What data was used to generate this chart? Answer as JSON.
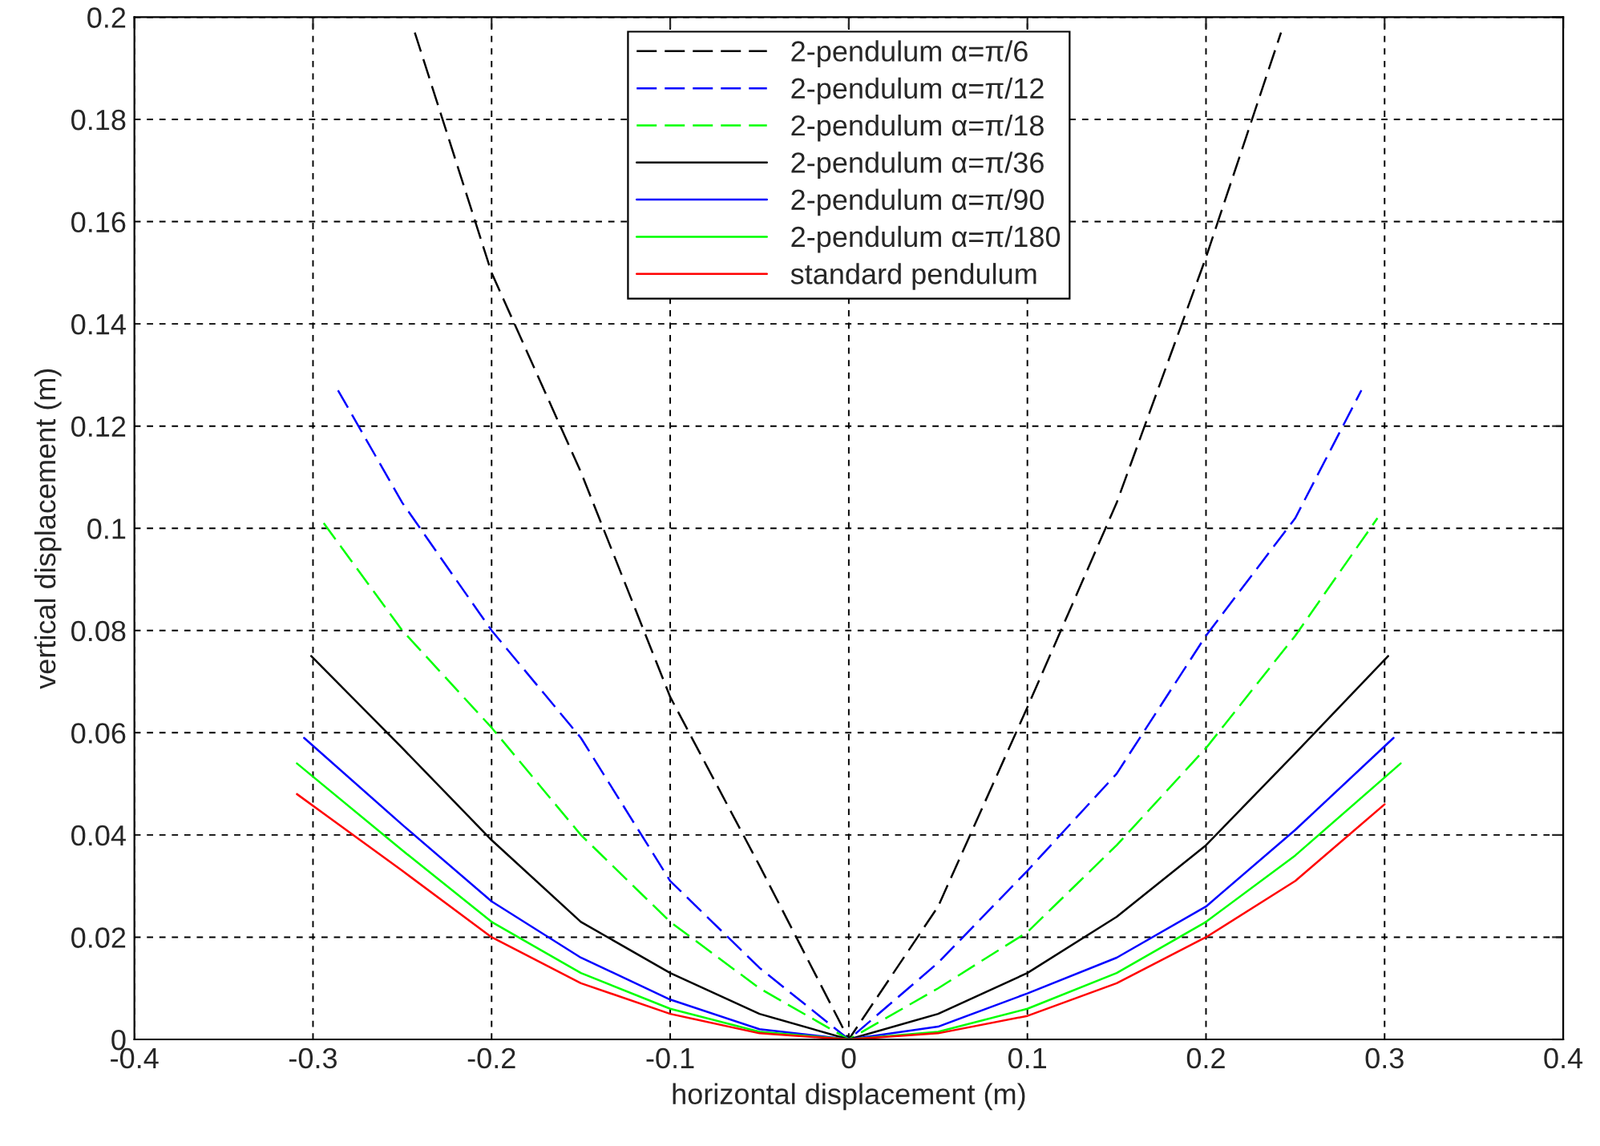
{
  "chart_data": {
    "type": "line",
    "xlabel": "horizontal displacement (m)",
    "ylabel": "vertical displacement (m)",
    "xlim": [
      -0.4,
      0.4
    ],
    "xticks": [
      -0.4,
      -0.3,
      -0.2,
      -0.1,
      0,
      0.1,
      0.2,
      0.3,
      0.4
    ],
    "ylim": [
      0,
      0.2
    ],
    "yticks": [
      0,
      0.02,
      0.04,
      0.06,
      0.08,
      0.1,
      0.12,
      0.14,
      0.16,
      0.18,
      0.2
    ],
    "grid": true,
    "legend": "top",
    "marker": "none",
    "series": [
      {
        "name": "2-pendulum α=π/6",
        "color": "#000000",
        "line_style": "dashed",
        "x": [
          -0.243,
          -0.2,
          -0.15,
          -0.1,
          -0.05,
          0,
          0.05,
          0.1,
          0.15,
          0.2,
          0.242
        ],
        "values": [
          0.197,
          0.15,
          0.111,
          0.067,
          0.034,
          0,
          0.026,
          0.065,
          0.105,
          0.153,
          0.197
        ]
      },
      {
        "name": "2-pendulum α=π/12",
        "color": "#0000ff",
        "line_style": "dashed",
        "x": [
          -0.286,
          -0.25,
          -0.2,
          -0.15,
          -0.1,
          -0.05,
          0,
          0.05,
          0.1,
          0.15,
          0.2,
          0.25,
          0.287
        ],
        "values": [
          0.127,
          0.105,
          0.08,
          0.059,
          0.031,
          0.014,
          0,
          0.015,
          0.033,
          0.052,
          0.079,
          0.102,
          0.127
        ]
      },
      {
        "name": "2-pendulum α=π/18",
        "color": "#00ff00",
        "line_style": "dashed",
        "x": [
          -0.294,
          -0.25,
          -0.2,
          -0.15,
          -0.1,
          -0.05,
          0,
          0.05,
          0.1,
          0.15,
          0.2,
          0.25,
          0.296
        ],
        "values": [
          0.101,
          0.08,
          0.061,
          0.04,
          0.023,
          0.01,
          0,
          0.01,
          0.021,
          0.038,
          0.057,
          0.079,
          0.102
        ]
      },
      {
        "name": "2-pendulum α=π/36",
        "color": "#000000",
        "line_style": "solid",
        "x": [
          -0.301,
          -0.25,
          -0.2,
          -0.15,
          -0.1,
          -0.05,
          0,
          0.05,
          0.1,
          0.15,
          0.2,
          0.25,
          0.302
        ],
        "values": [
          0.075,
          0.057,
          0.039,
          0.023,
          0.013,
          0.005,
          0,
          0.005,
          0.013,
          0.024,
          0.038,
          0.056,
          0.075
        ]
      },
      {
        "name": "2-pendulum α=π/90",
        "color": "#0000ff",
        "line_style": "solid",
        "x": [
          -0.305,
          -0.25,
          -0.2,
          -0.15,
          -0.1,
          -0.05,
          0,
          0.05,
          0.1,
          0.15,
          0.2,
          0.25,
          0.305
        ],
        "values": [
          0.059,
          0.042,
          0.027,
          0.016,
          0.0078,
          0.002,
          0,
          0.0025,
          0.009,
          0.016,
          0.026,
          0.041,
          0.059
        ]
      },
      {
        "name": "2-pendulum α=π/180",
        "color": "#00ff00",
        "line_style": "solid",
        "x": [
          -0.309,
          -0.25,
          -0.2,
          -0.15,
          -0.1,
          -0.05,
          0,
          0.05,
          0.1,
          0.15,
          0.2,
          0.25,
          0.309
        ],
        "values": [
          0.054,
          0.037,
          0.023,
          0.013,
          0.006,
          0.0015,
          0,
          0.0015,
          0.006,
          0.013,
          0.023,
          0.036,
          0.054
        ]
      },
      {
        "name": "standard pendulum",
        "color": "#ff0000",
        "line_style": "solid",
        "x": [
          -0.309,
          -0.25,
          -0.2,
          -0.15,
          -0.1,
          -0.05,
          0,
          0.05,
          0.1,
          0.15,
          0.2,
          0.25,
          0.3
        ],
        "values": [
          0.048,
          0.033,
          0.02,
          0.011,
          0.005,
          0.0012,
          0,
          0.0012,
          0.0046,
          0.011,
          0.02,
          0.031,
          0.046
        ]
      }
    ]
  }
}
